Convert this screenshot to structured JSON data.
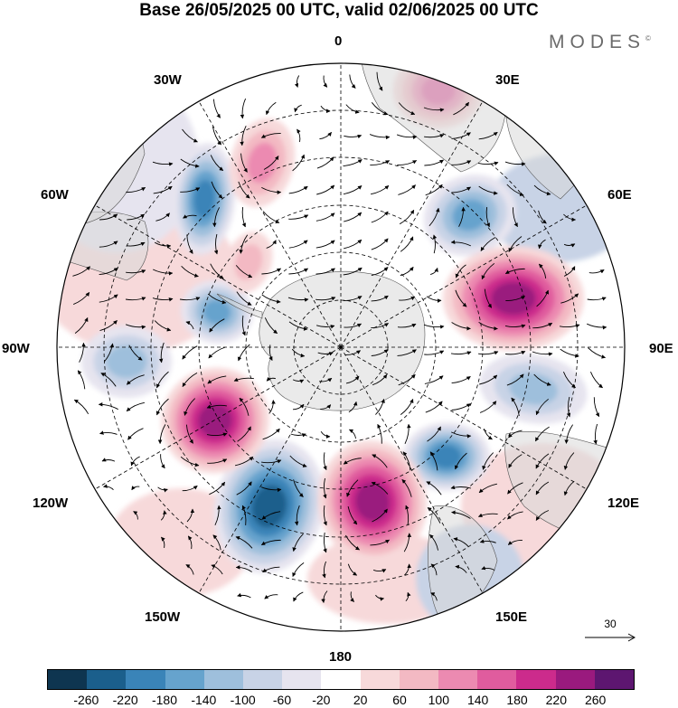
{
  "title": "Base 26/05/2025 00 UTC, valid 02/06/2025 00 UTC",
  "brand": "MODES",
  "brand_mark": "©",
  "lon_labels": {
    "lon_0": "0",
    "lon_30e": "30E",
    "lon_60e": "60E",
    "lon_90e": "90E",
    "lon_120e": "120E",
    "lon_150e": "150E",
    "lon_180": "180",
    "lon_150w": "150W",
    "lon_120w": "120W",
    "lon_90w": "90W",
    "lon_60w": "60W",
    "lon_30w": "30W"
  },
  "reference_vector": "30",
  "colorbar": {
    "ticks": [
      "-260",
      "-220",
      "-180",
      "-140",
      "-100",
      "-60",
      "-20",
      "20",
      "60",
      "100",
      "140",
      "180",
      "220",
      "260"
    ],
    "colors": [
      "#0e3550",
      "#1b5f8c",
      "#3a84b8",
      "#66a3cd",
      "#9ebfdc",
      "#c8d3e6",
      "#e6e4ef",
      "#ffffff",
      "#f7d9da",
      "#f3b9c3",
      "#ec8ab1",
      "#e05c9e",
      "#cc2b8c",
      "#9a1a7e",
      "#5d1670"
    ]
  },
  "anomaly_centers": [
    {
      "sign": "negative",
      "value": -200
    },
    {
      "sign": "negative",
      "value": -160
    },
    {
      "sign": "negative",
      "value": -240
    },
    {
      "sign": "negative",
      "value": -180
    },
    {
      "sign": "negative",
      "value": -140
    },
    {
      "sign": "negative",
      "value": -120
    },
    {
      "sign": "negative",
      "value": -100
    },
    {
      "sign": "positive",
      "value": 240
    },
    {
      "sign": "positive",
      "value": 230
    },
    {
      "sign": "positive",
      "value": 240
    },
    {
      "sign": "positive",
      "value": 160
    },
    {
      "sign": "positive",
      "value": 120
    },
    {
      "sign": "positive",
      "value": 80
    }
  ]
}
